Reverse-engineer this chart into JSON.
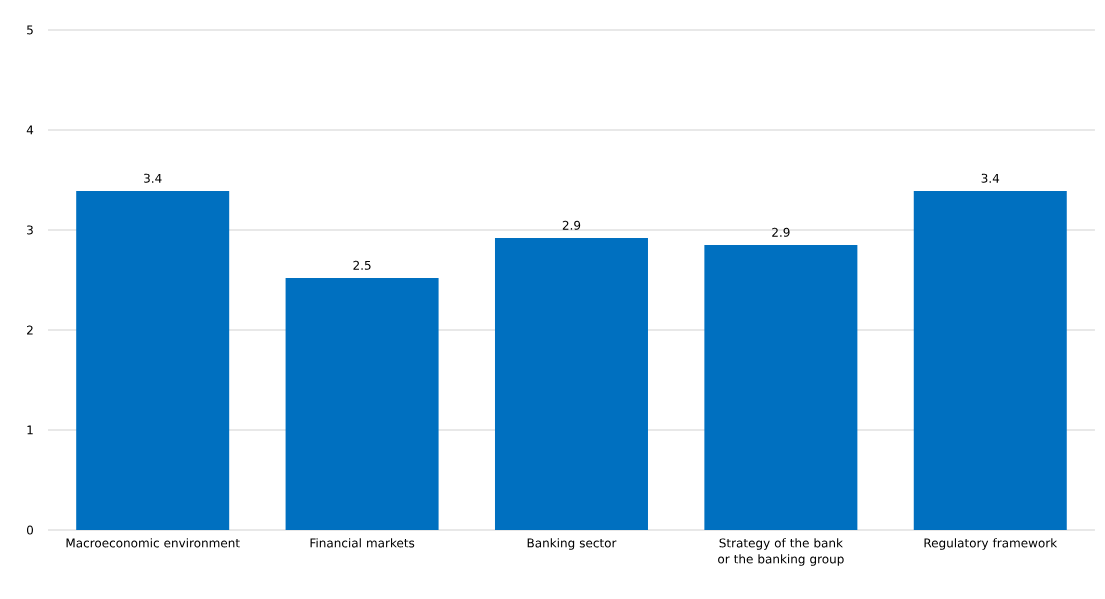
{
  "chart_data": {
    "type": "bar",
    "categories": [
      "Macroeconomic environment",
      "Financial markets",
      "Banking sector",
      "Strategy of the bank or the banking group",
      "Regulatory framework"
    ],
    "values": [
      3.39,
      2.52,
      2.92,
      2.85,
      3.39
    ],
    "value_labels": [
      "3.4",
      "2.5",
      "2.9",
      "2.9",
      "3.4"
    ],
    "color": "#0070c0",
    "ylim": [
      0,
      5
    ],
    "yticks": [
      0,
      1,
      2,
      3,
      4,
      5
    ],
    "grid": "y"
  }
}
